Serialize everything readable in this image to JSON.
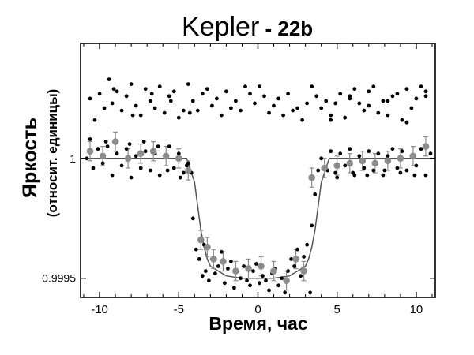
{
  "chart_data": {
    "type": "scatter",
    "title_main": "Kepler",
    "title_dash": " - ",
    "title_sub": "22b",
    "xlabel": "Время, час",
    "ylabel_main": "Яркость",
    "ylabel_sub": "(относит. единицы)",
    "x_ticks": [
      -10,
      -5,
      0,
      5,
      10
    ],
    "x_tick_labels": [
      "-10",
      "-5",
      "0",
      "5",
      "10"
    ],
    "y_ticks": [
      1.0,
      0.9995
    ],
    "y_tick_labels": [
      "1",
      "0.9995"
    ],
    "xlim": [
      -11.2,
      11.2
    ],
    "ylim": [
      0.99942,
      1.00048
    ],
    "grid": false,
    "colors": {
      "raw": "#000000",
      "binned": "#8c8c8c",
      "model": "#555555"
    },
    "series": [
      {
        "marker": "small-black-dot",
        "x": [
          -10.6,
          -10.0,
          -9.7,
          -9.4,
          -9.2,
          -8.9,
          -8.6,
          -8.3,
          -8.0,
          -7.7,
          -7.4,
          -7.1,
          -6.8,
          -6.5,
          -6.2,
          -5.9,
          -5.6,
          -5.3,
          -5.0,
          -4.7,
          -4.4,
          -4.1,
          -3.8,
          -3.5,
          -3.2,
          -2.9,
          -2.6,
          -2.3,
          -2.0,
          -1.7,
          -1.4,
          -1.1,
          -0.8,
          -0.5,
          -0.2,
          0.1,
          0.4,
          0.7,
          1.0,
          1.3,
          1.6,
          1.9,
          2.2,
          2.5,
          2.8,
          3.1,
          3.4,
          3.7,
          4.0,
          4.3,
          4.6,
          4.9,
          5.2,
          5.5,
          5.8,
          6.1,
          6.4,
          6.7,
          7.0,
          7.3,
          7.6,
          7.9,
          8.2,
          8.5,
          8.8,
          9.1,
          9.4,
          9.7,
          10.0,
          10.3,
          10.6,
          -10.3,
          -9.1,
          -7.9,
          -6.7,
          -5.5,
          -4.3,
          4.6,
          5.8,
          7.0,
          8.2,
          9.4,
          10.6
        ],
        "y": [
          1.00025,
          1.00027,
          1.00021,
          1.00033,
          1.00023,
          1.00028,
          1.0002,
          1.00026,
          1.00031,
          1.00022,
          1.00018,
          1.00029,
          1.00024,
          1.00021,
          1.0003,
          1.00019,
          1.00026,
          1.00028,
          1.00017,
          1.0002,
          1.00031,
          1.00024,
          1.0002,
          1.00027,
          1.00029,
          1.00022,
          1.00025,
          1.00018,
          1.00028,
          1.00021,
          1.00024,
          1.0002,
          1.0003,
          1.00027,
          1.00023,
          1.0003,
          1.00026,
          1.00019,
          1.00022,
          1.00025,
          1.00018,
          1.00027,
          1.0002,
          1.00021,
          1.00016,
          1.00023,
          1.0003,
          1.00026,
          1.00021,
          1.00024,
          1.00016,
          1.00023,
          1.00027,
          1.00017,
          1.00025,
          1.00029,
          1.00023,
          1.0002,
          1.00028,
          1.0003,
          1.00019,
          1.00024,
          1.00018,
          1.00026,
          1.00027,
          1.00016,
          1.00029,
          1.00021,
          1.00025,
          1.0003,
          1.00026,
          1.00016,
          1.00029,
          1.00018,
          1.00027,
          1.00024,
          1.00019,
          1.00018,
          1.00026,
          1.00022,
          1.00024,
          1.00015,
          1.00028
        ]
      },
      {
        "marker": "small-black-dot",
        "x": [
          -10.8,
          -10.4,
          -10.1,
          -9.8,
          -9.5,
          -9.2,
          -8.9,
          -8.6,
          -8.3,
          -8.0,
          -7.7,
          -7.4,
          -7.1,
          -6.8,
          -6.5,
          -6.2,
          -5.9,
          -5.6,
          -5.3,
          -5.0,
          -4.7,
          -4.4,
          -4.1,
          -3.9,
          -3.7,
          -3.5,
          -3.4,
          -3.3,
          -3.1,
          -2.9,
          -2.7,
          -2.5,
          -2.3,
          -2.1,
          -1.9,
          -1.7,
          -1.5,
          -1.3,
          -1.1,
          -0.9,
          -0.7,
          -0.5,
          -0.3,
          -0.1,
          0.1,
          0.3,
          0.5,
          0.7,
          0.9,
          1.1,
          1.3,
          1.5,
          1.7,
          1.9,
          2.1,
          2.3,
          2.5,
          2.7,
          2.9,
          3.1,
          3.3,
          3.4,
          3.6,
          3.8,
          4.0,
          4.3,
          4.6,
          4.9,
          5.2,
          5.5,
          5.8,
          6.1,
          6.4,
          6.7,
          7.0,
          7.3,
          7.6,
          7.9,
          8.2,
          8.5,
          8.8,
          9.1,
          9.4,
          9.7,
          10.0,
          10.3,
          10.6,
          10.9,
          -10.6,
          -9.6,
          -8.1,
          -7.2,
          -6.3,
          -5.7,
          -4.9,
          -4.5,
          -4.2,
          4.4,
          5.0,
          6.0,
          6.9,
          8.0,
          9.0,
          9.9
        ],
        "y": [
          1.0,
          0.99996,
          1.00004,
          0.99998,
          1.00005,
          0.99993,
          1.00002,
          0.99997,
          1.00004,
          0.99992,
          1.00001,
          0.99996,
          1.00003,
          0.99995,
          1.00002,
          0.99993,
          1.00001,
          1.00005,
          0.99996,
          1.00002,
          0.99994,
          0.99998,
          0.99975,
          0.99962,
          0.99958,
          0.99951,
          0.99964,
          0.99953,
          0.99949,
          0.99958,
          0.99952,
          0.99955,
          0.99961,
          0.99948,
          0.99954,
          0.99957,
          0.99946,
          0.99953,
          0.9995,
          0.99955,
          0.99949,
          0.99947,
          0.99953,
          0.99956,
          0.99948,
          0.99951,
          0.99949,
          0.99945,
          0.99952,
          0.99954,
          0.99947,
          0.9995,
          0.99944,
          0.99953,
          0.99958,
          0.99955,
          0.99962,
          0.99951,
          0.99959,
          0.99964,
          0.99944,
          0.99972,
          0.99985,
          0.99995,
          1.0,
          0.99996,
          1.00003,
          0.99994,
          1.00002,
          0.99997,
          1.00004,
          0.99993,
          1.00001,
          0.99996,
          1.00003,
          0.99995,
          1.00002,
          0.99993,
          1.00001,
          1.00004,
          0.99996,
          1.00003,
          0.99995,
          1.00001,
          0.99997,
          1.00004,
          0.99993,
          1.00002,
          1.00008,
          1.00007,
          1.00006,
          1.00007,
          1.00005,
          0.99995,
          0.99992,
          0.99997,
          0.99994,
          0.99995,
          0.99992,
          0.99994,
          0.99993,
          0.99995,
          0.99994,
          0.99993
        ]
      },
      {
        "marker": "gray-circle-with-errorbar",
        "x": [
          -10.6,
          -9.8,
          -9.0,
          -8.2,
          -7.4,
          -6.6,
          -5.8,
          -5.0,
          -4.4,
          -3.6,
          -3.2,
          -2.8,
          -2.2,
          -1.4,
          -0.6,
          0.2,
          1.0,
          1.8,
          2.4,
          2.9,
          3.4,
          4.2,
          5.0,
          5.8,
          6.6,
          7.4,
          8.2,
          9.0,
          9.8,
          10.6
        ],
        "y": [
          1.00003,
          1.00001,
          1.00007,
          1.0,
          1.00002,
          1.00003,
          1.00001,
          1.0,
          0.99995,
          0.99966,
          0.99963,
          0.99958,
          0.99957,
          0.99953,
          0.99954,
          0.99955,
          0.99953,
          0.99949,
          0.99958,
          0.99953,
          0.99992,
          0.99996,
          0.99997,
          0.99998,
          0.99999,
          0.99998,
          0.99999,
          1.0,
          1.00001,
          1.00005
        ],
        "err": [
          4e-05,
          4e-05,
          4e-05,
          4e-05,
          4e-05,
          4e-05,
          4e-05,
          4e-05,
          4e-05,
          4e-05,
          4e-05,
          4e-05,
          4e-05,
          4e-05,
          4e-05,
          4e-05,
          4e-05,
          4e-05,
          4e-05,
          4e-05,
          4e-05,
          4e-05,
          4e-05,
          4e-05,
          4e-05,
          4e-05,
          4e-05,
          4e-05,
          4e-05,
          4e-05
        ]
      },
      {
        "marker": "line",
        "x": [
          -11.2,
          -4.5,
          -4.0,
          -3.8,
          -3.6,
          -3.4,
          -3.2,
          -3.0,
          -2.5,
          -2.0,
          -1.0,
          0.0,
          1.0,
          2.0,
          2.5,
          3.0,
          3.2,
          3.4,
          3.6,
          3.8,
          4.0,
          4.5,
          11.2
        ],
        "y": [
          1.0,
          1.0,
          0.9999,
          0.9998,
          0.9997,
          0.99963,
          0.99958,
          0.99955,
          0.99953,
          0.99951,
          0.9995,
          0.9995,
          0.9995,
          0.99951,
          0.99953,
          0.99955,
          0.99958,
          0.99963,
          0.9997,
          0.9998,
          0.9999,
          1.0,
          1.0
        ]
      }
    ]
  }
}
